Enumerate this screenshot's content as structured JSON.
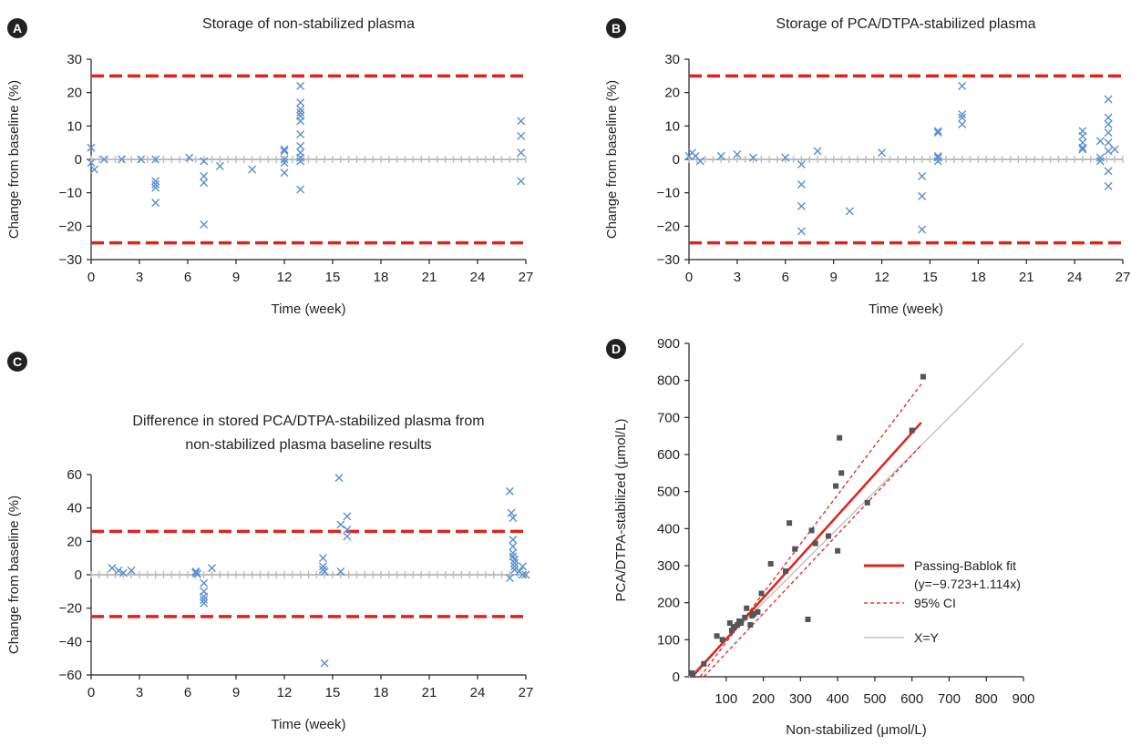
{
  "chart_data": [
    {
      "panel_letter": "A",
      "type": "scatter",
      "title": [
        "Storage of non-stabilized plasma"
      ],
      "xlabel": "Time (week)",
      "ylabel": "Change from baseline (%)",
      "xlim": [
        0,
        27
      ],
      "ylim": [
        -30,
        30
      ],
      "xticks": [
        "0",
        "3",
        "6",
        "9",
        "12",
        "15",
        "18",
        "21",
        "24",
        "27"
      ],
      "yticks": [
        "−30",
        "−20",
        "−10",
        "0",
        "10",
        "20",
        "30"
      ],
      "limits": [
        25,
        -25
      ],
      "points": [
        [
          0,
          3.5
        ],
        [
          0,
          -1
        ],
        [
          0.2,
          -3
        ],
        [
          0.8,
          0
        ],
        [
          1.9,
          0
        ],
        [
          3.1,
          0
        ],
        [
          4,
          0
        ],
        [
          4,
          -6.5
        ],
        [
          4,
          -7.5
        ],
        [
          4,
          -8.5
        ],
        [
          4,
          -13
        ],
        [
          6.1,
          0.5
        ],
        [
          7,
          -0.5
        ],
        [
          7,
          -5
        ],
        [
          7,
          -7
        ],
        [
          7,
          -19.5
        ],
        [
          8,
          -2
        ],
        [
          10,
          -3
        ],
        [
          12,
          2.5
        ],
        [
          12,
          3
        ],
        [
          12,
          0
        ],
        [
          12,
          -1
        ],
        [
          12,
          -4
        ],
        [
          13,
          22
        ],
        [
          13,
          17
        ],
        [
          13,
          15
        ],
        [
          13,
          14
        ],
        [
          13,
          13
        ],
        [
          13,
          11.5
        ],
        [
          13,
          7.5
        ],
        [
          13,
          4
        ],
        [
          13,
          2
        ],
        [
          13,
          0.5
        ],
        [
          13,
          -0.5
        ],
        [
          13,
          -9
        ],
        [
          26.7,
          11.5
        ],
        [
          26.7,
          7
        ],
        [
          26.7,
          2
        ],
        [
          26.7,
          -6.5
        ]
      ]
    },
    {
      "panel_letter": "B",
      "type": "scatter",
      "title": [
        "Storage of PCA/DTPA-stabilized plasma"
      ],
      "xlabel": "Time (week)",
      "ylabel": "Change from baseline (%)",
      "xlim": [
        0,
        27
      ],
      "ylim": [
        -30,
        30
      ],
      "xticks": [
        "0",
        "3",
        "6",
        "9",
        "12",
        "15",
        "18",
        "21",
        "24",
        "27"
      ],
      "yticks": [
        "−30",
        "−20",
        "−10",
        "0",
        "10",
        "20",
        "30"
      ],
      "limits": [
        25,
        -25
      ],
      "points": [
        [
          0,
          1
        ],
        [
          0.2,
          2
        ],
        [
          0.4,
          1
        ],
        [
          0.7,
          -0.5
        ],
        [
          2,
          1
        ],
        [
          3,
          1.5
        ],
        [
          4,
          0.5
        ],
        [
          6,
          0.5
        ],
        [
          7,
          -1.5
        ],
        [
          7,
          -7.5
        ],
        [
          7,
          -14
        ],
        [
          7,
          -21.5
        ],
        [
          8,
          2.5
        ],
        [
          10,
          -15.5
        ],
        [
          12,
          2
        ],
        [
          14.5,
          -5
        ],
        [
          14.5,
          -11
        ],
        [
          14.5,
          -21
        ],
        [
          15.5,
          8.5
        ],
        [
          15.5,
          8
        ],
        [
          15.5,
          1
        ],
        [
          15.5,
          0.5
        ],
        [
          15.5,
          -0.5
        ],
        [
          17,
          22
        ],
        [
          17,
          13.5
        ],
        [
          17,
          12.5
        ],
        [
          17,
          10.5
        ],
        [
          24.5,
          8.5
        ],
        [
          24.5,
          7
        ],
        [
          24.5,
          5
        ],
        [
          24.5,
          3.5
        ],
        [
          24.5,
          3
        ],
        [
          25.6,
          5.5
        ],
        [
          25.6,
          0.5
        ],
        [
          25.6,
          -0.5
        ],
        [
          26.1,
          18
        ],
        [
          26.1,
          12.5
        ],
        [
          26.1,
          10.5
        ],
        [
          26.1,
          8
        ],
        [
          26.1,
          5
        ],
        [
          26.1,
          2.5
        ],
        [
          26.1,
          -3.5
        ],
        [
          26.1,
          -8
        ],
        [
          26.5,
          3
        ]
      ]
    },
    {
      "panel_letter": "C",
      "type": "scatter",
      "title": [
        "Difference in stored PCA/DTPA-stabilized plasma from",
        "non-stabilized plasma baseline results"
      ],
      "xlabel": "Time (week)",
      "ylabel": "Change from baseline (%)",
      "xlim": [
        0,
        27
      ],
      "ylim": [
        -60,
        60
      ],
      "xticks": [
        "0",
        "3",
        "6",
        "9",
        "12",
        "15",
        "18",
        "21",
        "24",
        "27"
      ],
      "yticks": [
        "−60",
        "−40",
        "−20",
        "0",
        "20",
        "40",
        "60"
      ],
      "limits": [
        26,
        -25
      ],
      "points": [
        [
          1.3,
          4
        ],
        [
          1.7,
          2.5
        ],
        [
          2,
          1
        ],
        [
          2.5,
          2.5
        ],
        [
          6.5,
          2
        ],
        [
          6.5,
          1
        ],
        [
          6.6,
          0.5
        ],
        [
          7,
          -5
        ],
        [
          7,
          -10
        ],
        [
          7,
          -13
        ],
        [
          7,
          -15
        ],
        [
          7,
          -17
        ],
        [
          7.5,
          4
        ],
        [
          14.4,
          10
        ],
        [
          14.4,
          5
        ],
        [
          14.4,
          3
        ],
        [
          14.5,
          2
        ],
        [
          14.5,
          -53
        ],
        [
          15.4,
          58
        ],
        [
          15.5,
          30
        ],
        [
          15.5,
          2
        ],
        [
          15.9,
          35
        ],
        [
          15.9,
          27
        ],
        [
          15.9,
          23
        ],
        [
          26,
          50
        ],
        [
          26.1,
          37
        ],
        [
          26.2,
          34
        ],
        [
          26.2,
          21
        ],
        [
          26.2,
          17
        ],
        [
          26.2,
          13
        ],
        [
          26.2,
          11
        ],
        [
          26.3,
          9
        ],
        [
          26.3,
          7
        ],
        [
          26.3,
          5
        ],
        [
          26.3,
          3
        ],
        [
          26,
          -2
        ],
        [
          26.6,
          2
        ],
        [
          26.8,
          5
        ],
        [
          26.8,
          0
        ],
        [
          27,
          0
        ]
      ]
    },
    {
      "panel_letter": "D",
      "type": "scatter",
      "xlabel": "Non-stabilized (μmol/L)",
      "ylabel": "PCA/DTPA-stabilized (μmol/L)",
      "xlim": [
        0,
        900
      ],
      "ylim": [
        0,
        900
      ],
      "xticks": [
        "100",
        "200",
        "300",
        "400",
        "500",
        "600",
        "700",
        "800",
        "900"
      ],
      "yticks": [
        "0",
        "100",
        "200",
        "300",
        "400",
        "500",
        "600",
        "700",
        "800",
        "900"
      ],
      "fit": {
        "intercept": -9.723,
        "slope": 1.114,
        "x_range": [
          8,
          625
        ]
      },
      "ci_upper": [
        [
          30,
          0
        ],
        [
          625,
          790
        ]
      ],
      "ci_lower": [
        [
          40,
          0
        ],
        [
          625,
          625
        ]
      ],
      "identity": [
        [
          0,
          0
        ],
        [
          900,
          900
        ]
      ],
      "points": [
        [
          8,
          10
        ],
        [
          10,
          5
        ],
        [
          40,
          35
        ],
        [
          75,
          110
        ],
        [
          90,
          100
        ],
        [
          110,
          145
        ],
        [
          115,
          125
        ],
        [
          120,
          135
        ],
        [
          130,
          140
        ],
        [
          135,
          150
        ],
        [
          140,
          145
        ],
        [
          150,
          160
        ],
        [
          155,
          185
        ],
        [
          165,
          140
        ],
        [
          170,
          165
        ],
        [
          175,
          170
        ],
        [
          185,
          175
        ],
        [
          195,
          225
        ],
        [
          220,
          305
        ],
        [
          260,
          285
        ],
        [
          270,
          415
        ],
        [
          285,
          345
        ],
        [
          320,
          155
        ],
        [
          330,
          395
        ],
        [
          340,
          360
        ],
        [
          375,
          380
        ],
        [
          395,
          515
        ],
        [
          400,
          340
        ],
        [
          405,
          645
        ],
        [
          410,
          550
        ],
        [
          480,
          470
        ],
        [
          600,
          665
        ],
        [
          630,
          810
        ]
      ],
      "legend": [
        {
          "label": "Passing-Bablok fit",
          "sublabel": "(y=−9.723+1.114x)",
          "style": "solid-red"
        },
        {
          "label": "95% CI",
          "style": "dashed-red"
        },
        {
          "label": "X=Y",
          "style": "solid-gray"
        }
      ],
      "legend_position": "lower-right"
    }
  ],
  "colors": {
    "marker": "#5b8fd0",
    "limit_line": "#e0221c",
    "zero_line": "#bdbdbd",
    "axis": "#222222",
    "badge": "#222222",
    "fit_line": "#e0221c",
    "ci_line": "#e0221c",
    "identity_line": "#c4c4c4",
    "square_marker": "#555555"
  }
}
